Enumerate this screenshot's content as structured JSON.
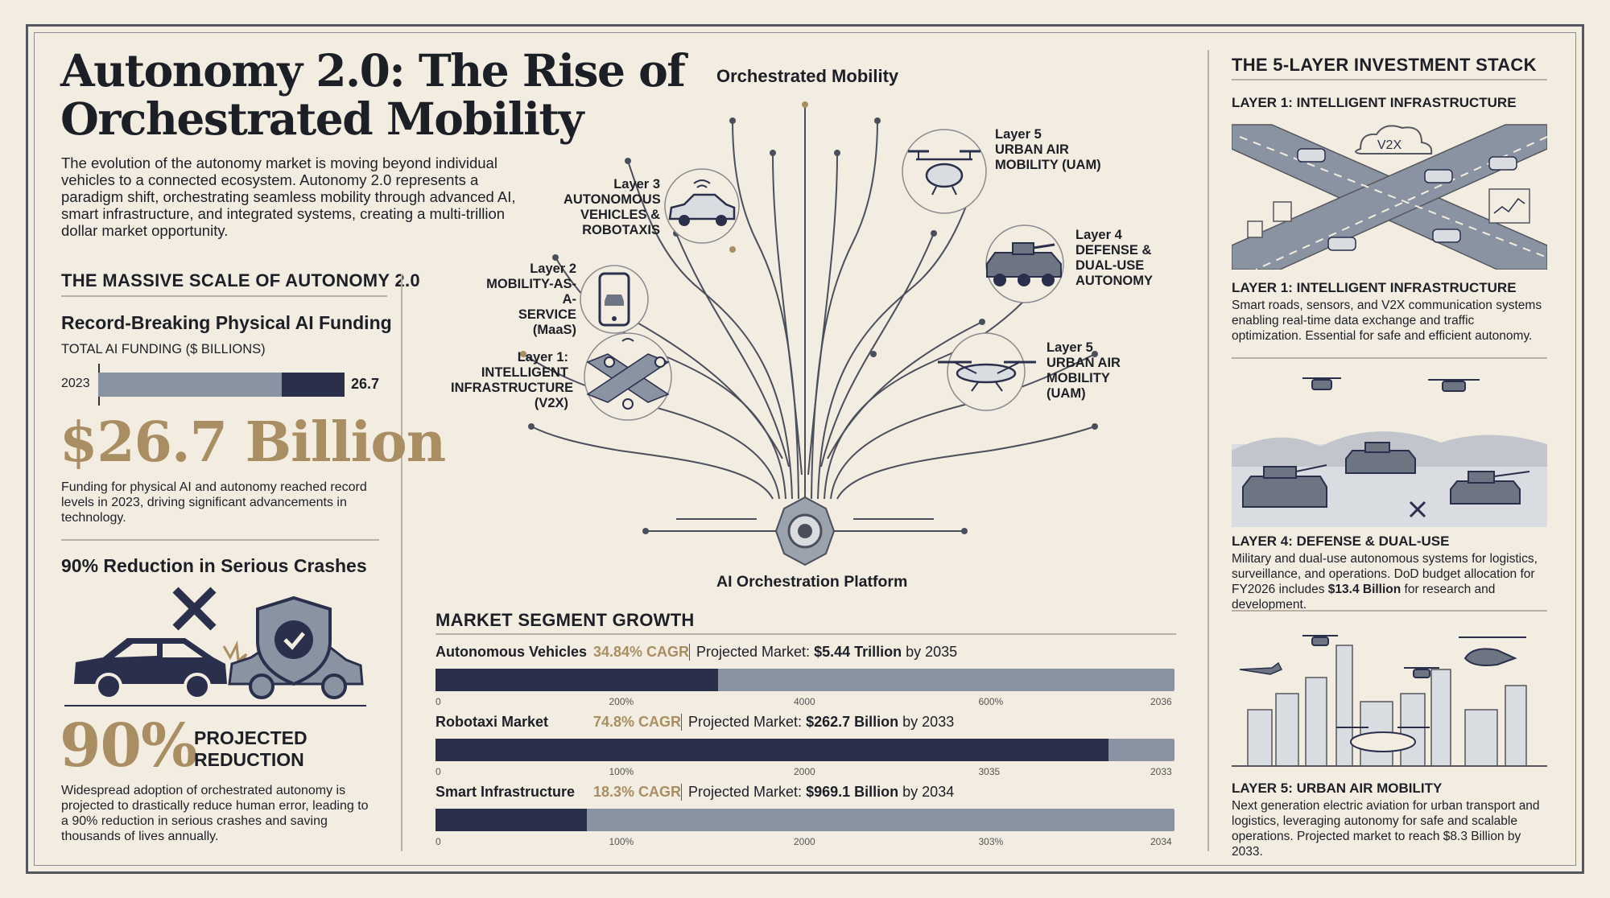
{
  "title_line1": "Autonomy 2.0: The Rise of",
  "title_line2": "Orchestrated Mobility",
  "intro": "The evolution of the autonomy market is moving beyond individual vehicles to a connected ecosystem. Autonomy 2.0 represents a paradigm shift, orchestrating seamless mobility through advanced AI, smart infrastructure, and integrated systems, creating a multi-trillion dollar market opportunity.",
  "left": {
    "section_title": "THE MASSIVE SCALE OF AUTONOMY 2.0",
    "funding_title": "Record-Breaking Physical AI Funding",
    "funding_axis": "TOTAL AI FUNDING ($ BILLIONS)",
    "funding_year": "2023",
    "funding_value": "26.7",
    "funding_big": "$26.7 Billion",
    "funding_body": "Funding for physical AI and autonomy reached record levels in 2023, driving significant advancements in technology.",
    "crash_title": "90% Reduction in Serious Crashes",
    "crash_big": "90%",
    "crash_label1": "PROJECTED",
    "crash_label2": "REDUCTION",
    "crash_body": "Widespread adoption of orchestrated autonomy is projected to drastically reduce human error, leading to a 90% reduction in serious crashes and saving thousands of lives annually."
  },
  "center": {
    "tree_title": "Orchestrated Mobility",
    "platform": "AI Orchestration Platform",
    "layer5_top": [
      "Layer 5",
      "URBAN AIR",
      "MOBILITY (UAM)"
    ],
    "layer4": [
      "Layer 4",
      "DEFENSE &",
      "DUAL-USE",
      "AUTONOMY"
    ],
    "layer5_bottom": [
      "Layer 5",
      "URBAN AIR",
      "MOBILITY",
      "(UAM)"
    ],
    "layer3": [
      "Layer 3",
      "AUTONOMOUS",
      "VEHICLES &",
      "ROBOTAXIS"
    ],
    "layer2": [
      "Layer 2",
      "MOBILITY-AS-A-",
      "SERVICE (MaaS)"
    ],
    "layer1": [
      "Layer 1:",
      "INTELLIGENT",
      "INFRASTRUCTURE",
      "(V2X)"
    ]
  },
  "market": {
    "title": "MARKET SEGMENT GROWTH",
    "proj_prefix": "Projected Market:",
    "segments": [
      {
        "name": "Autonomous Vehicles",
        "cagr": "34.84% CAGR",
        "value": "$5.44 Trillion",
        "by": "by 2035",
        "fill": 0.382,
        "ticks": [
          "0",
          "200%",
          "4000",
          "600%",
          "2036"
        ]
      },
      {
        "name": "Robotaxi Market",
        "cagr": "74.8% CAGR",
        "value": "$262.7 Billion",
        "by": "by 2033",
        "fill": 0.911,
        "ticks": [
          "0",
          "100%",
          "2000",
          "3035",
          "2033"
        ]
      },
      {
        "name": "Smart Infrastructure",
        "cagr": "18.3% CAGR",
        "value": "$969.1 Billion",
        "by": "by 2034",
        "fill": 0.205,
        "ticks": [
          "0",
          "100%",
          "2000",
          "303%",
          "2034"
        ]
      }
    ]
  },
  "right": {
    "title": "THE 5-LAYER INVESTMENT STACK",
    "l1_heading": "LAYER 1: INTELLIGENT INFRASTRUCTURE",
    "v2x": "V2X",
    "l1_caption": "LAYER 1: INTELLIGENT INFRASTRUCTURE",
    "l1_body": "Smart roads, sensors, and V2X communication systems enabling real-time data exchange and traffic optimization. Essential for safe and efficient autonomy.",
    "l4_caption": "LAYER 4: DEFENSE & DUAL-USE",
    "l4_body_pre": "Military and dual-use autonomous systems for logistics, surveillance, and operations. DoD budget allocation for FY2026 includes",
    "l4_body_bold": "$13.4 Billion",
    "l4_body_post": "for research and development.",
    "l5_caption": "LAYER 5: URBAN AIR MOBILITY",
    "l5_body": "Next generation electric aviation for urban transport and logistics, leveraging autonomy for safe and scalable operations. Projected market to reach $8.3 Billion by 2033."
  },
  "colors": {
    "navy": "#2a2f4c",
    "slate": "#8a93a1",
    "gold": "#a88e62",
    "bg": "#f3ede1"
  }
}
